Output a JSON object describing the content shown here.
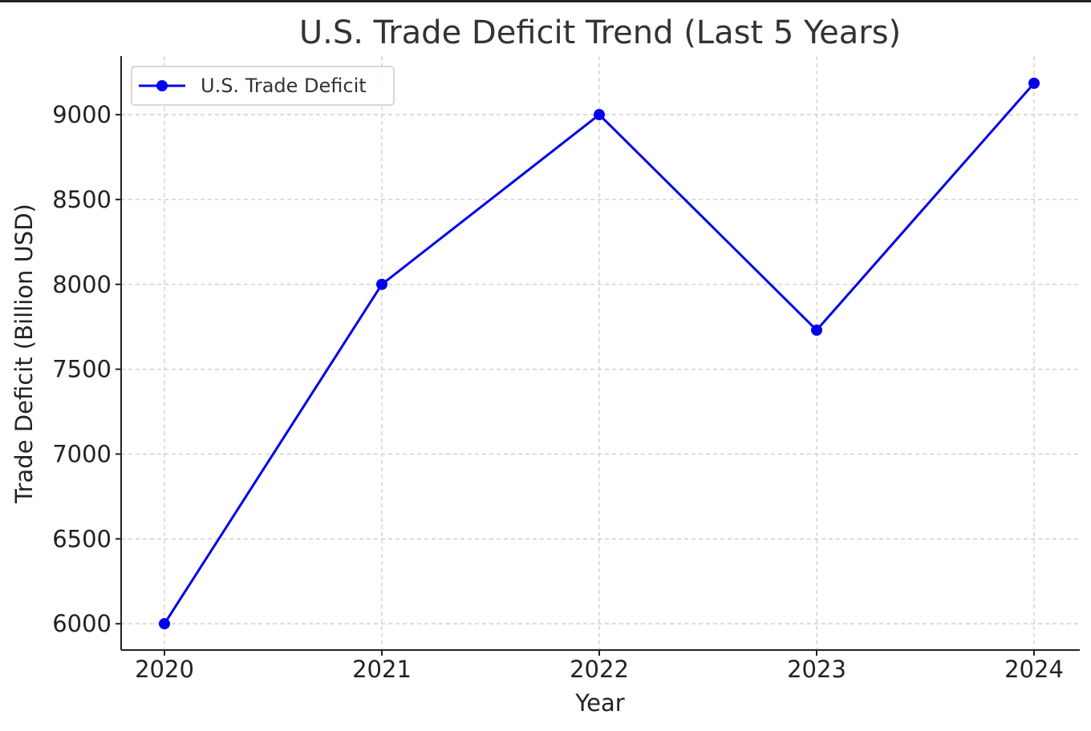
{
  "chart_data": {
    "type": "line",
    "title": "U.S. Trade Deficit Trend (Last 5 Years)",
    "xlabel": "Year",
    "ylabel": "Trade Deficit (Billion USD)",
    "categories": [
      "2020",
      "2021",
      "2022",
      "2023",
      "2024"
    ],
    "series": [
      {
        "name": "U.S. Trade Deficit",
        "color": "#0000ee",
        "marker": "circle",
        "values": [
          6000,
          8000,
          9000,
          7730,
          9185
        ]
      }
    ],
    "y_ticks": [
      "6000",
      "6500",
      "7000",
      "7500",
      "8000",
      "8500",
      "9000"
    ],
    "ylim": [
      5845,
      9345
    ],
    "grid": true,
    "legend_position": "top-left"
  }
}
